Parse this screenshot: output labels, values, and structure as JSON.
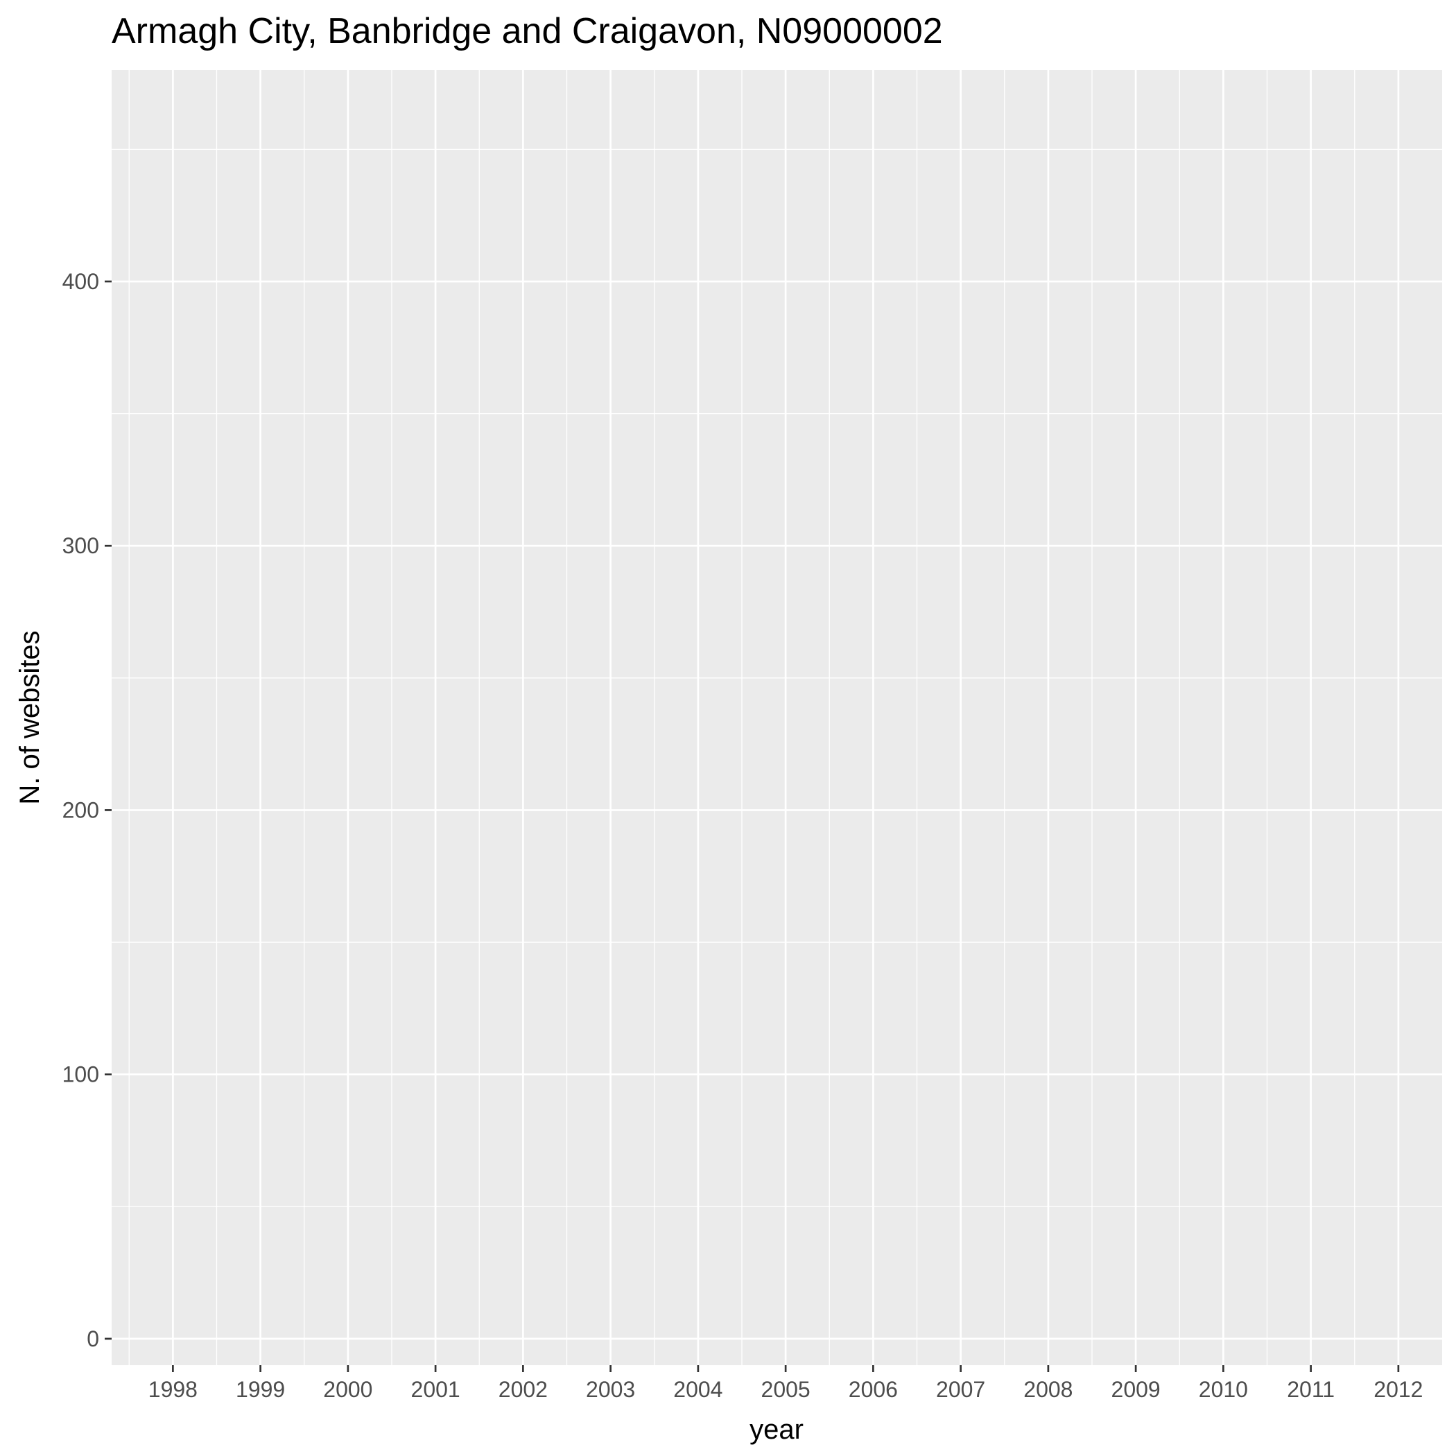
{
  "chart_data": {
    "type": "line",
    "title": "Armagh City, Banbridge and Craigavon, N09000002",
    "xlabel": "year",
    "ylabel": "N. of websites",
    "x_ticks": [
      1998,
      1999,
      2000,
      2001,
      2002,
      2003,
      2004,
      2005,
      2006,
      2007,
      2008,
      2009,
      2010,
      2011,
      2012
    ],
    "y_ticks": [
      0,
      100,
      200,
      300,
      400
    ],
    "xlim": [
      1997.3,
      2012.5
    ],
    "ylim": [
      -10,
      480
    ],
    "grid": true,
    "legend": "none",
    "series": [],
    "colors": {
      "panel_background": "#ebebeb",
      "grid_line": "#ffffff",
      "tick_text": "#4d4d4d",
      "tick_mark": "#333333"
    }
  }
}
